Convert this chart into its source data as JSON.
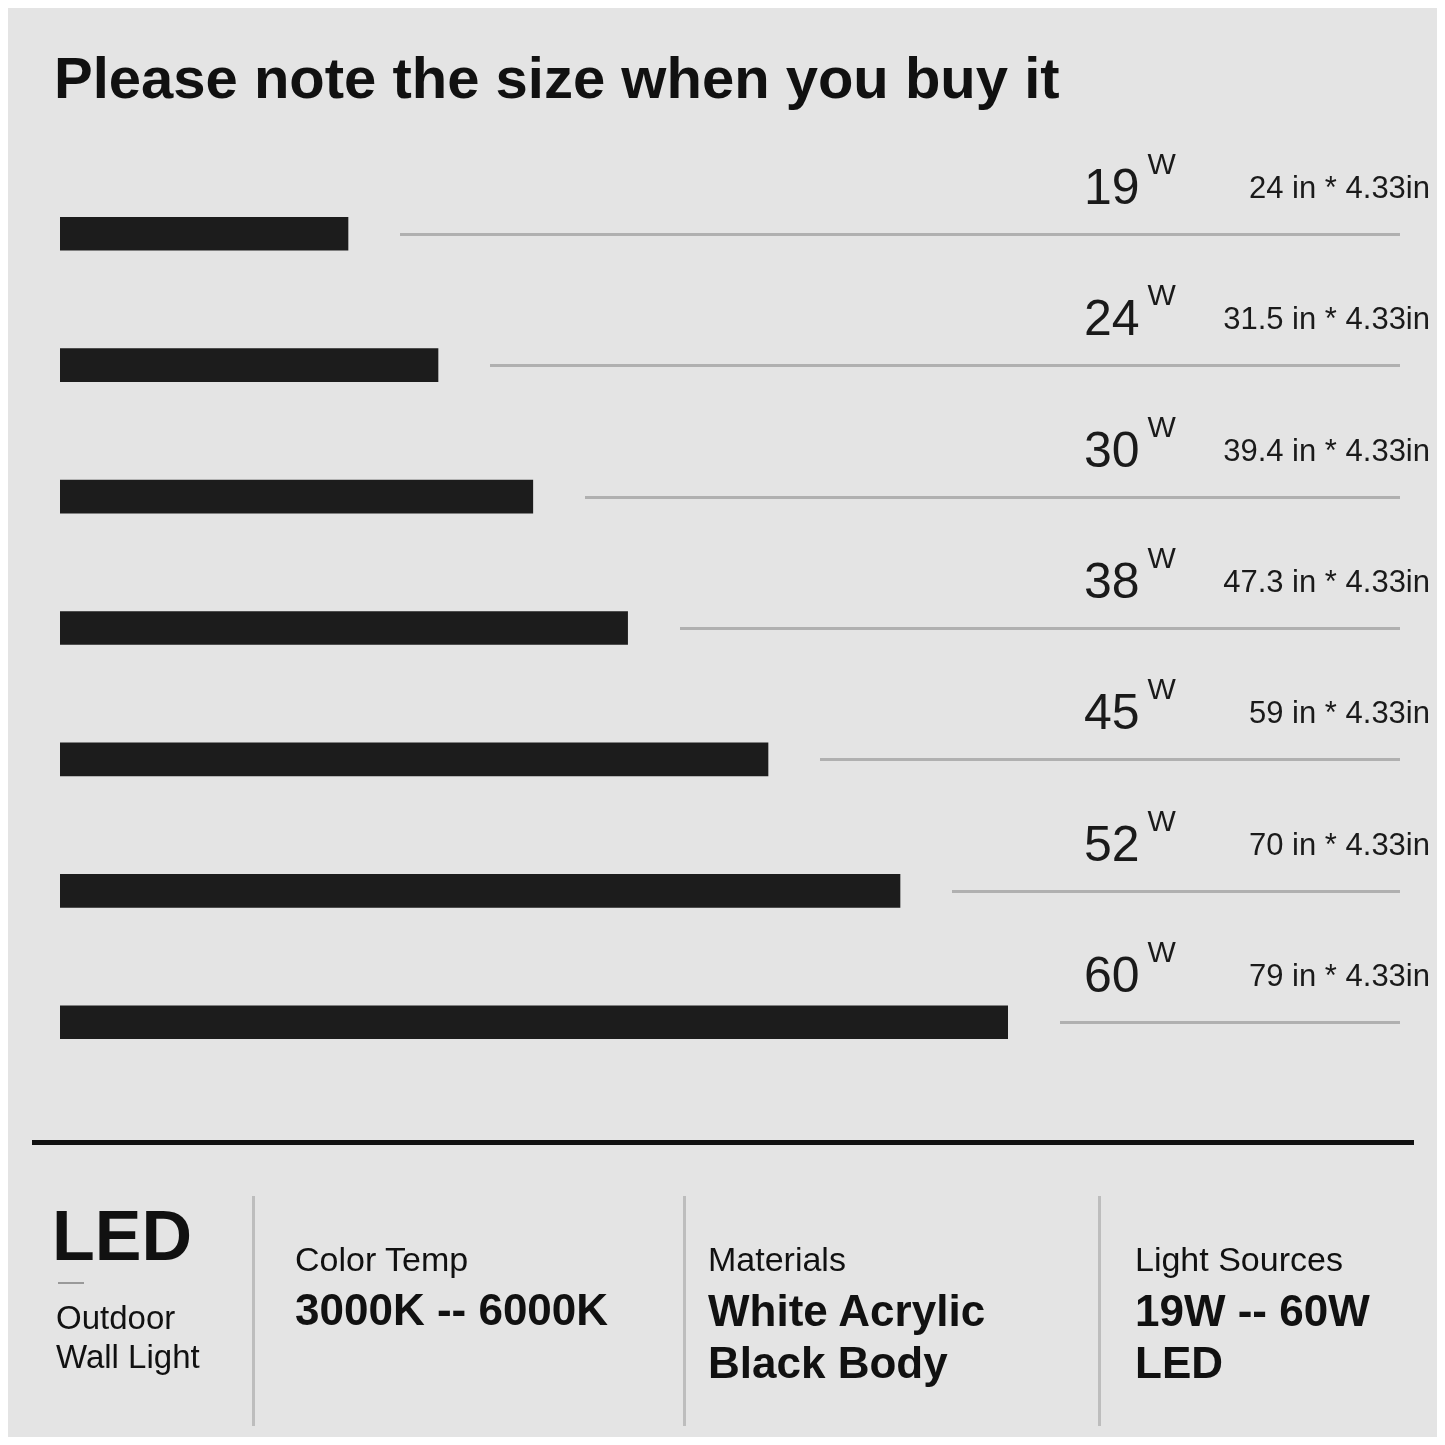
{
  "chart_data": {
    "type": "bar",
    "orientation": "horizontal",
    "title": "Please note the size when you buy it",
    "categories": [
      "19$^{W}$",
      "24$^{W}$",
      "30$^{W}$",
      "38$^{W}$",
      "45$^{W}$",
      "52$^{W}$",
      "60$^{W}$"
    ],
    "values": [
      24,
      31.5,
      39.4,
      47.3,
      59,
      70,
      79
    ],
    "tick_labels": false,
    "color": "#1c1c1c",
    "value_labels": [
      "24 in * 4.33in",
      "31.5 in * 4.33in",
      "39.4 in * 4.33in",
      "47.3 in * 4.33in",
      "59 in * 4.33in",
      "70 in * 4.33in",
      "79 in * 4.33in"
    ],
    "annotations": [
      "LED",
      "Outdoor Wall Light",
      "Color Temp",
      "3000K -- 6000K",
      "Materials",
      "White Acrylic Black Body",
      "Light Sources",
      "19W -- 60W LED"
    ]
  }
}
